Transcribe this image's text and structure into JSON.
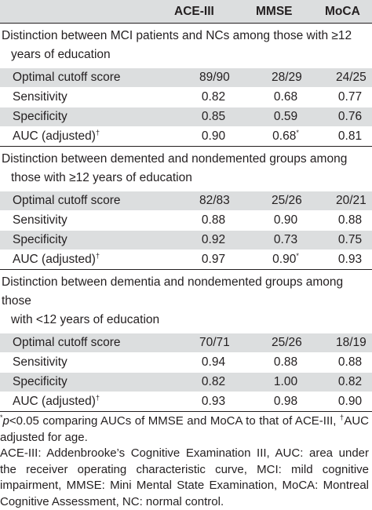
{
  "columns": {
    "c1": "ACE-III",
    "c2": "MMSE",
    "c3": "MoCA"
  },
  "sections": [
    {
      "title_line1": "Distinction between MCI patients and NCs among those with ≥12",
      "title_line2": "years of education",
      "rows": [
        {
          "label": "Optimal cutoff score",
          "c1": "89/90",
          "c2": "28/29",
          "c3": "24/25"
        },
        {
          "label": "Sensitivity",
          "c1": "0.82",
          "c2": "0.68",
          "c3": "0.77"
        },
        {
          "label": "Specificity",
          "c1": "0.85",
          "c2": "0.59",
          "c3": "0.76"
        },
        {
          "label": "AUC (adjusted)",
          "label_sup": "†",
          "c1": "0.90",
          "c2": "0.68",
          "c2_sup": "*",
          "c3": "0.81"
        }
      ]
    },
    {
      "title_line1": "Distinction between demented and nondemented groups among",
      "title_line2": "those with ≥12 years of education",
      "rows": [
        {
          "label": "Optimal cutoff score",
          "c1": "82/83",
          "c2": "25/26",
          "c3": "20/21"
        },
        {
          "label": "Sensitivity",
          "c1": "0.88",
          "c2": "0.90",
          "c3": "0.88"
        },
        {
          "label": "Specificity",
          "c1": "0.92",
          "c2": "0.73",
          "c3": "0.75"
        },
        {
          "label": "AUC (adjusted)",
          "label_sup": "†",
          "c1": "0.97",
          "c2": "0.90",
          "c2_sup": "*",
          "c3": "0.93"
        }
      ]
    },
    {
      "title_line1": "Distinction between dementia and nondemented groups among those",
      "title_line2": "with <12 years of education",
      "rows": [
        {
          "label": "Optimal cutoff score",
          "c1": "70/71",
          "c2": "25/26",
          "c3": "18/19"
        },
        {
          "label": "Sensitivity",
          "c1": "0.94",
          "c2": "0.88",
          "c3": "0.88"
        },
        {
          "label": "Specificity",
          "c1": "0.82",
          "c2": "1.00",
          "c3": "0.82"
        },
        {
          "label": "AUC (adjusted)",
          "label_sup": "†",
          "c1": "0.93",
          "c2": "0.98",
          "c3": "0.90"
        }
      ]
    }
  ],
  "footnotes": {
    "note1_mark": "*",
    "note1_p": "p",
    "note1_text": "<0.05 comparing AUCs of MMSE and MoCA to that of ACE-III,",
    "note1_dagger": "†",
    "note1_end": "AUC adjusted for age.",
    "note2": "ACE-III: Addenbrooke’s Cognitive Examination III, AUC: area under the receiver operating characteristic curve, MCI: mild cognitive impairment, MMSE: Mini Mental State Examination, MoCA: Montreal Cognitive Assessment, NC: normal control."
  }
}
